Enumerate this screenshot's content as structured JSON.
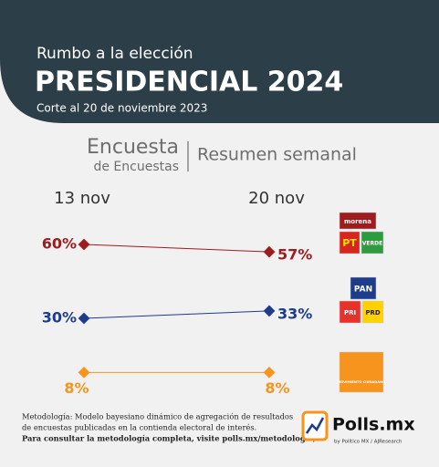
{
  "header": {
    "kicker": "Rumbo a la elección",
    "title": "PRESIDENCIAL 2024",
    "date": "Corte al 20 de noviembre 2023"
  },
  "section": {
    "title_line1": "Encuesta",
    "title_line2": "de Encuestas",
    "subtitle": "Resumen semanal"
  },
  "chart_data": {
    "type": "slope",
    "categories": [
      "13 nov",
      "20 nov"
    ],
    "series": [
      {
        "color": "#9e1b1e",
        "values": [
          60,
          57
        ],
        "value_labels": [
          "60%",
          "57%"
        ],
        "logos": [
          "morena",
          "PT",
          "VERDE"
        ]
      },
      {
        "color": "#1f3c8c",
        "values": [
          30,
          33
        ],
        "value_labels": [
          "30%",
          "33%"
        ],
        "logos": [
          "PAN",
          "PRI",
          "PRD"
        ]
      },
      {
        "color": "#f7941d",
        "values": [
          8,
          8
        ],
        "value_labels": [
          "8%",
          "8%"
        ],
        "logos": [
          "MOVIMIENTO CIUDADANO"
        ]
      }
    ]
  },
  "footer": {
    "line1": "Metodología: Modelo bayesiano dinámico de agregación de resultados",
    "line2": "de encuestas publicadas en la contienda electoral de interés.",
    "line3": "Para consultar la metodología completa, visite polls.mx/metodologia/."
  },
  "brand": {
    "name": "Polls.mx",
    "byline": "by Político MX / AJResearch"
  }
}
